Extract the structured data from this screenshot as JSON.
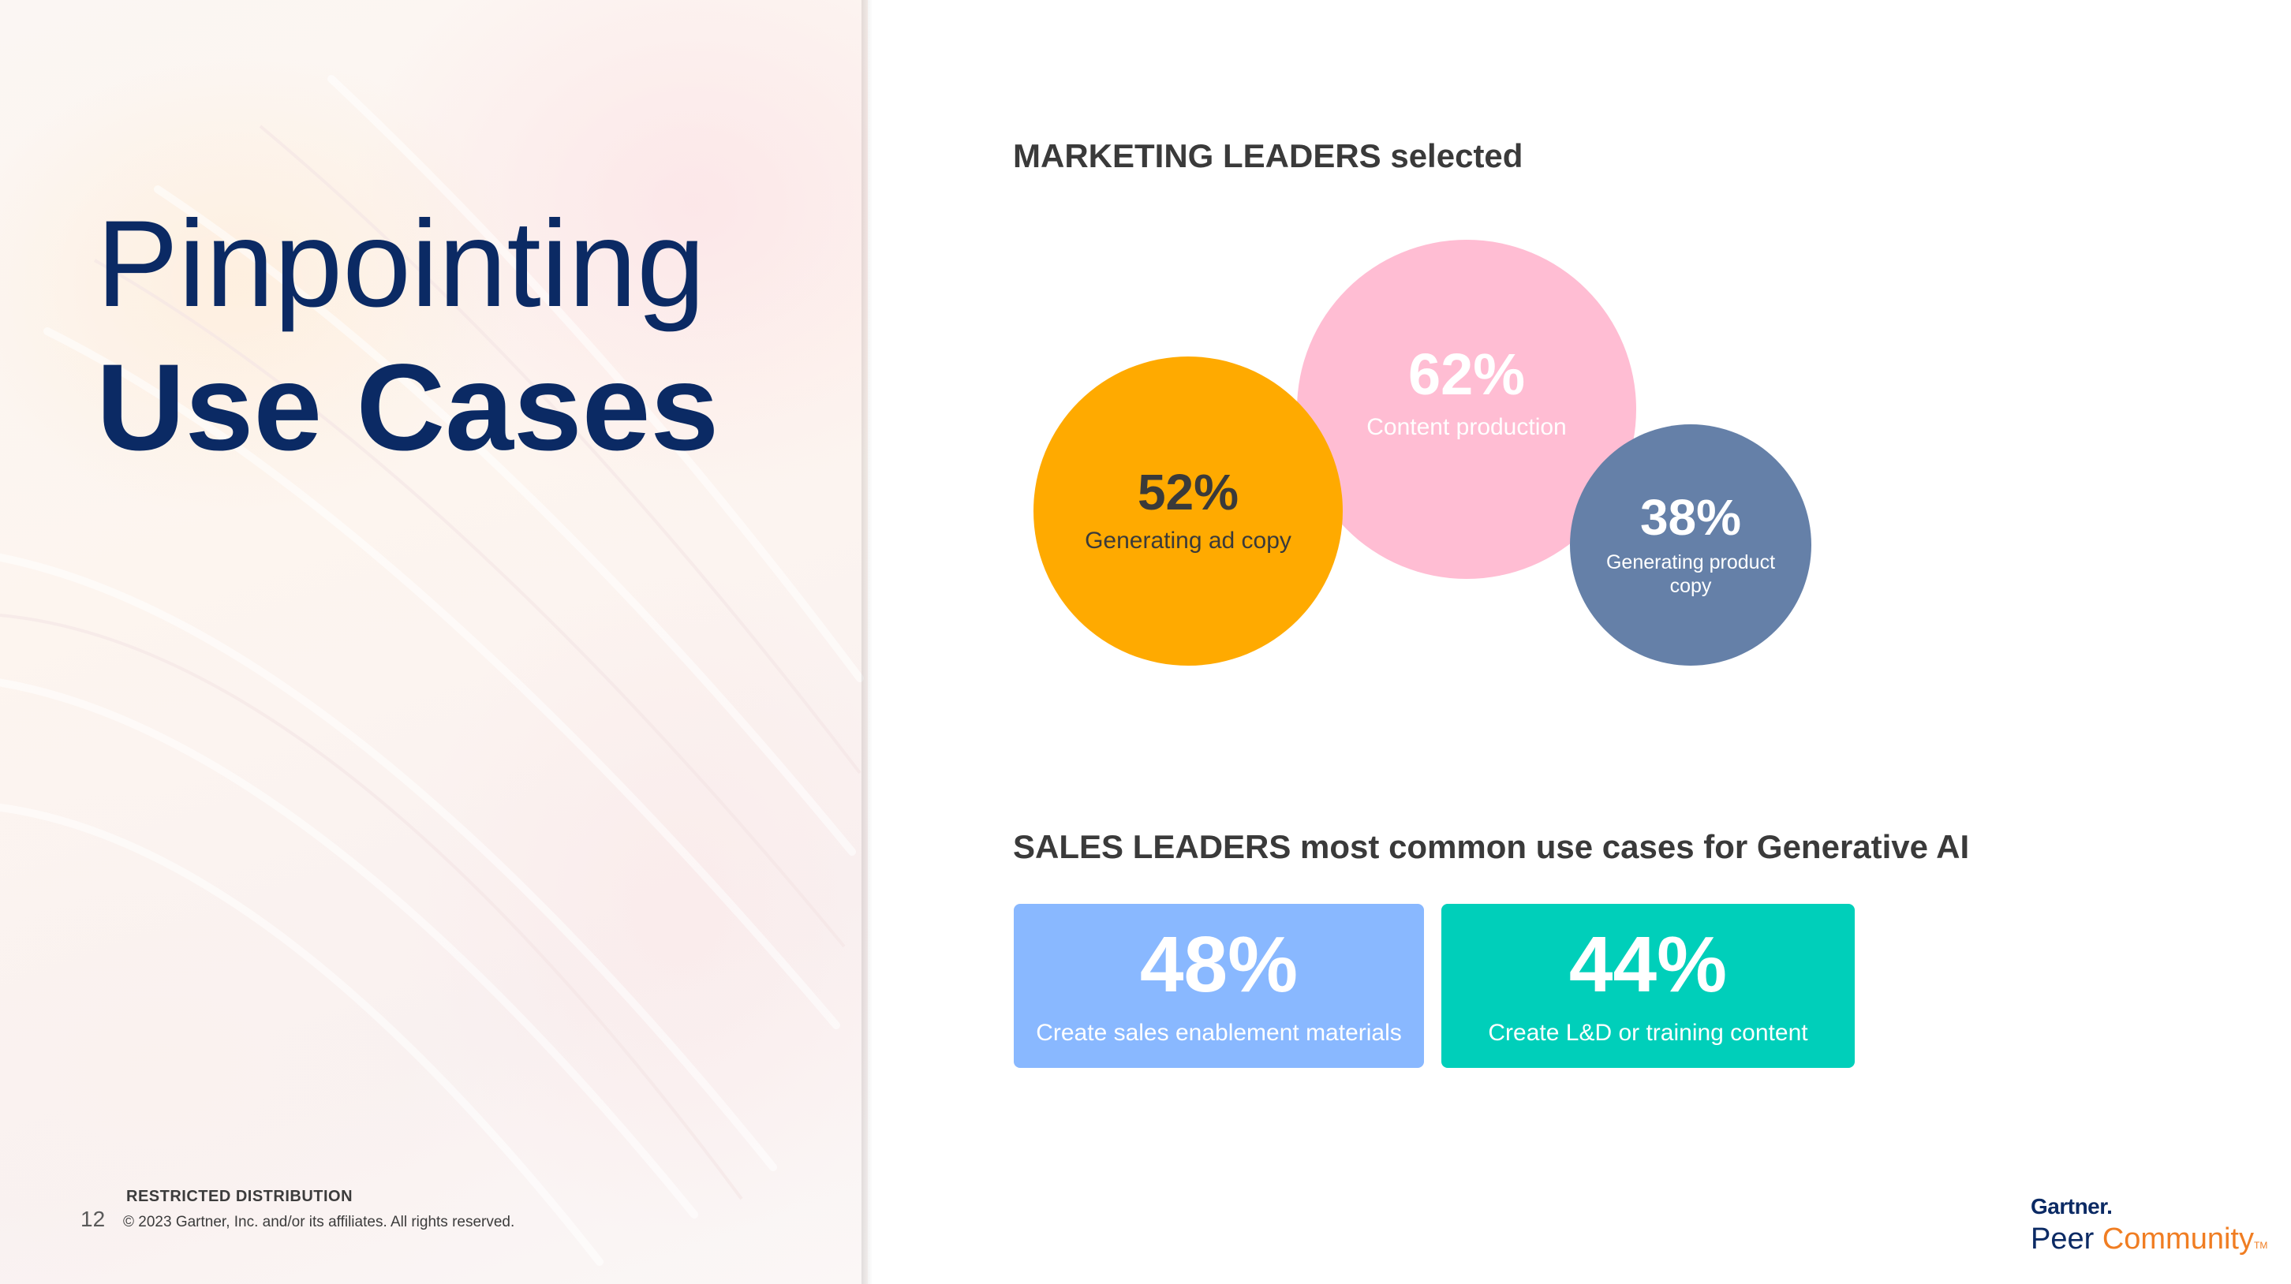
{
  "slide": {
    "title_line1": "Pinpointing",
    "title_line2": "Use Cases",
    "page_number": "12",
    "restricted_label": "RESTRICTED DISTRIBUTION",
    "copyright": "© 2023 Gartner, Inc. and/or its affiliates. All rights reserved."
  },
  "marketing": {
    "heading": "MARKETING LEADERS selected",
    "bubbles": [
      {
        "value": "62%",
        "label": "Content production",
        "color": "#ffbdd3"
      },
      {
        "value": "52%",
        "label": "Generating ad copy",
        "color": "#ffaa00"
      },
      {
        "value": "38%",
        "label": "Generating product copy",
        "color": "#6580a8"
      }
    ]
  },
  "sales": {
    "heading": "SALES LEADERS most common use cases for Generative AI",
    "cards": [
      {
        "value": "48%",
        "label": "Create sales enablement materials",
        "color": "#89b8ff"
      },
      {
        "value": "44%",
        "label": "Create L&D or training content",
        "color": "#00cfba"
      }
    ]
  },
  "logo": {
    "gartner": "Gartner.",
    "peer": "Peer ",
    "community": "Community",
    "tm": "TM"
  }
}
